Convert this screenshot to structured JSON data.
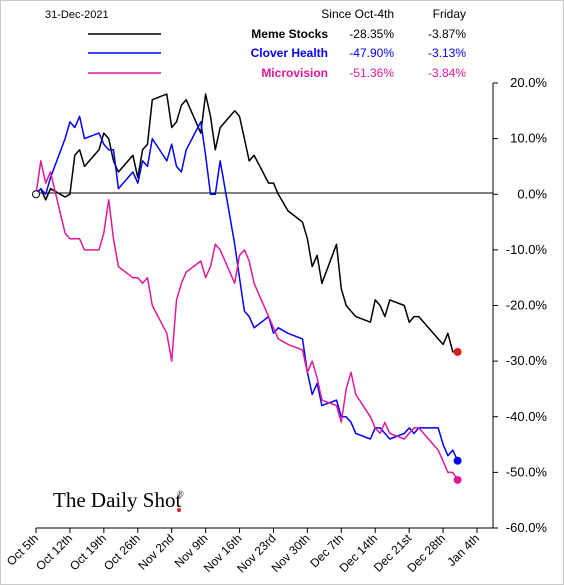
{
  "header": {
    "date": "31-Dec-2021",
    "col1": "Since Oct-4th",
    "col2": "Friday"
  },
  "brand": {
    "text": "The Daily Shot",
    "mark": "®"
  },
  "chart_data": {
    "type": "line",
    "x": [
      "Oct 5th",
      "Oct 6th",
      "Oct 7th",
      "Oct 8th",
      "Oct 11th",
      "Oct 12th",
      "Oct 13th",
      "Oct 14th",
      "Oct 15th",
      "Oct 18th",
      "Oct 19th",
      "Oct 20th",
      "Oct 21st",
      "Oct 22nd",
      "Oct 25th",
      "Oct 26th",
      "Oct 27th",
      "Oct 28th",
      "Oct 29th",
      "Nov 1st",
      "Nov 2nd",
      "Nov 3rd",
      "Nov 4th",
      "Nov 5th",
      "Nov 8th",
      "Nov 9th",
      "Nov 10th",
      "Nov 11th",
      "Nov 12th",
      "Nov 15th",
      "Nov 16th",
      "Nov 17th",
      "Nov 18th",
      "Nov 19th",
      "Nov 22nd",
      "Nov 23rd",
      "Nov 24th",
      "Nov 26th",
      "Nov 29th",
      "Nov 30th",
      "Dec 1st",
      "Dec 2nd",
      "Dec 3rd",
      "Dec 6th",
      "Dec 7th",
      "Dec 8th",
      "Dec 9th",
      "Dec 10th",
      "Dec 13th",
      "Dec 14th",
      "Dec 15th",
      "Dec 16th",
      "Dec 17th",
      "Dec 20th",
      "Dec 21st",
      "Dec 22nd",
      "Dec 23rd",
      "Dec 27th",
      "Dec 28th",
      "Dec 29th",
      "Dec 30th",
      "Dec 31st"
    ],
    "x_ticks": [
      "Oct 5th",
      "Oct 12th",
      "Oct 19th",
      "Oct 26th",
      "Nov 2nd",
      "Nov 9th",
      "Nov 16th",
      "Nov 23rd",
      "Nov 30th",
      "Dec 7th",
      "Dec 14th",
      "Dec 21st",
      "Dec 28th",
      "Jan 4th"
    ],
    "y_ticks": [
      "20.0%",
      "10.0%",
      "0.0%",
      "-10.0%",
      "-20.0%",
      "-30.0%",
      "-40.0%",
      "-50.0%",
      "-60.0%"
    ],
    "ylim": [
      -60,
      20
    ],
    "grid": false,
    "end_markers": true,
    "series": [
      {
        "name": "Meme Stocks",
        "since": "-28.35%",
        "friday": "-3.87%",
        "color": "#000000",
        "values": [
          0,
          1,
          -1,
          1,
          -0.5,
          0,
          7,
          8,
          5,
          8,
          11,
          10,
          6,
          4,
          7,
          3,
          8,
          9,
          17,
          18,
          12,
          13,
          16,
          17,
          11,
          18,
          14,
          8,
          12,
          15,
          14,
          10,
          6,
          7,
          2,
          2,
          0,
          -3,
          -5,
          -8,
          -13,
          -11,
          -16,
          -9,
          -17,
          -20,
          -21,
          -22,
          -23,
          -19,
          -20,
          -22,
          -19,
          -20,
          -23,
          -22,
          -22,
          -26,
          -27,
          -25,
          -28.35,
          -28.35
        ]
      },
      {
        "name": "Clover Health",
        "since": "-47.90%",
        "friday": "-3.13%",
        "color": "#0000ff",
        "values": [
          0,
          1,
          0,
          3,
          10,
          13,
          12,
          14,
          10,
          11,
          9,
          8,
          8,
          1,
          4,
          2,
          6,
          5,
          10,
          6,
          9,
          5,
          4,
          8,
          13,
          7,
          0,
          0,
          6,
          -9,
          -15,
          -21,
          -22,
          -24,
          -22,
          -25,
          -24,
          -25,
          -26,
          -32,
          -36,
          -34,
          -38,
          -37,
          -40,
          -40,
          -41,
          -43,
          -44,
          -42,
          -42,
          -43,
          -44,
          -43,
          -42,
          -43,
          -42,
          -42,
          -45,
          -47,
          -46,
          -47.9
        ]
      },
      {
        "name": "Microvision",
        "since": "-51.36%",
        "friday": "-3.84%",
        "color": "#e0199a",
        "values": [
          0,
          6,
          2,
          4,
          -7,
          -8,
          -8,
          -8,
          -10,
          -10,
          -7,
          -1,
          -8,
          -13,
          -15,
          -15,
          -16,
          -15,
          -20,
          -25,
          -30,
          -19,
          -16,
          -14,
          -12,
          -15,
          -13,
          -9,
          -10,
          -16,
          -11,
          -10,
          -12,
          -16,
          -22,
          -24,
          -26,
          -27,
          -28,
          -32,
          -30,
          -33,
          -37,
          -38,
          -41,
          -35,
          -32,
          -36,
          -40,
          -42,
          -43,
          -41,
          -43,
          -44,
          -43,
          -42,
          -42,
          -46,
          -48,
          -50,
          -50,
          -51.36
        ]
      }
    ]
  }
}
